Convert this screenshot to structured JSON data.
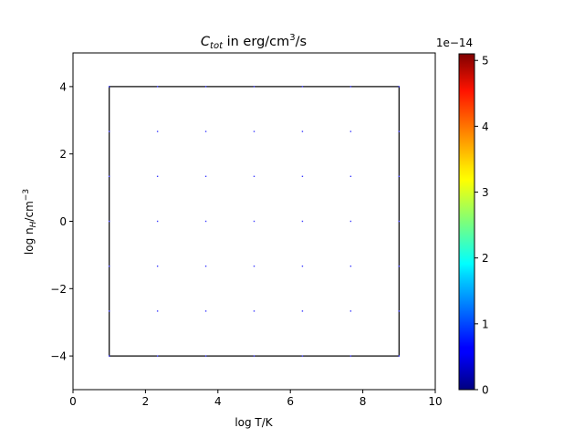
{
  "chart_data": {
    "type": "scatter",
    "title": {
      "main": "C",
      "sub": "tot",
      "mid": " in erg/cm",
      "sup": "3",
      "tail": "/s"
    },
    "xlabel": "log T/K",
    "ylabel": {
      "main": "log n",
      "sub": "H",
      "mid": "/cm",
      "sup": "−3"
    },
    "xlim": [
      0,
      10
    ],
    "ylim": [
      -5,
      5
    ],
    "xticks": [
      0,
      2,
      4,
      6,
      8,
      10
    ],
    "xtick_labels": [
      "0",
      "2",
      "4",
      "6",
      "8",
      "10"
    ],
    "yticks": [
      -4,
      -2,
      0,
      2,
      4
    ],
    "ytick_labels": [
      "−4",
      "−2",
      "0",
      "2",
      "4"
    ],
    "grid": false,
    "rectangle": {
      "x": [
        1,
        9
      ],
      "y": [
        -4,
        4
      ],
      "edge_color": "#000000"
    },
    "points": {
      "x": [
        1,
        2.3333,
        3.6667,
        5,
        6.3333,
        7.6667,
        9
      ],
      "y": [
        4,
        2.6667,
        1.3333,
        0,
        -1.3333,
        -2.6667,
        -4
      ],
      "color": "#3a3aff"
    },
    "colorbar": {
      "colormap": "jet",
      "range": [
        0,
        5.1
      ],
      "ticks": [
        0,
        1,
        2,
        3,
        4,
        5
      ],
      "tick_labels": [
        "0",
        "1",
        "2",
        "3",
        "4",
        "5"
      ],
      "offset_label": "1e−14"
    }
  }
}
